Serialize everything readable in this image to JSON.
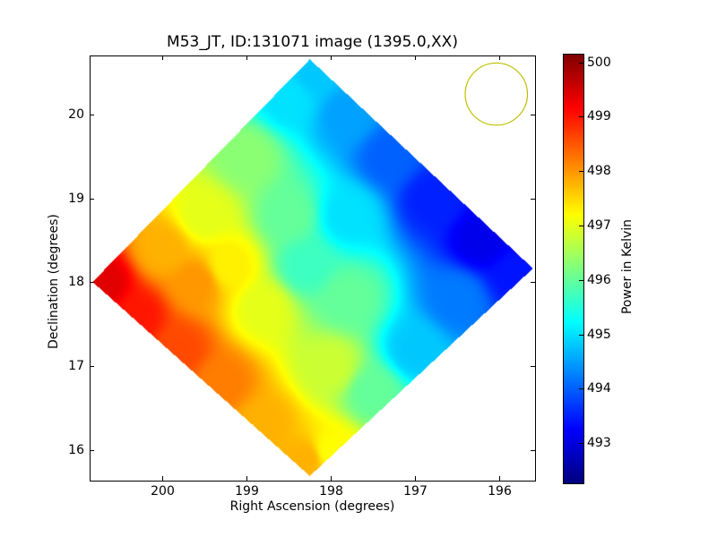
{
  "chart_data": {
    "type": "heatmap",
    "title": "M53_JT, ID:131071 image (1395.0,XX)",
    "xlabel": "Right Ascension (degrees)",
    "ylabel": "Declination (degrees)",
    "colorbar_label": "Power in Kelvin",
    "colormap": "jet",
    "xlim": [
      200.86,
      195.57
    ],
    "ylim": [
      15.64,
      20.7
    ],
    "clim": [
      492.26,
      500.16
    ],
    "xticks": [
      200,
      199,
      198,
      197,
      196
    ],
    "yticks": [
      16,
      17,
      18,
      19,
      20
    ],
    "cticks": [
      493,
      494,
      495,
      496,
      497,
      498,
      499,
      500
    ],
    "footprint_corners": [
      [
        200.83,
        18.01
      ],
      [
        198.25,
        20.66
      ],
      [
        195.6,
        18.17
      ],
      [
        198.25,
        15.7
      ]
    ],
    "beam_circle": {
      "ra": 196.03,
      "dec": 20.24,
      "radius_deg": 0.37,
      "color": "#bfbf00"
    },
    "samples": [
      [
        200.7,
        18.0,
        499.4
      ],
      [
        200.3,
        17.6,
        499.0
      ],
      [
        200.0,
        18.4,
        497.8
      ],
      [
        199.5,
        18.8,
        497.0
      ],
      [
        199.0,
        19.5,
        496.3
      ],
      [
        198.5,
        20.2,
        495.0
      ],
      [
        198.2,
        20.5,
        494.8
      ],
      [
        197.8,
        20.0,
        494.5
      ],
      [
        197.3,
        19.5,
        494.0
      ],
      [
        196.8,
        19.0,
        493.5
      ],
      [
        196.2,
        18.5,
        493.1
      ],
      [
        195.8,
        18.1,
        493.4
      ],
      [
        196.5,
        17.8,
        494.2
      ],
      [
        197.0,
        17.2,
        494.8
      ],
      [
        197.5,
        16.7,
        496.0
      ],
      [
        198.0,
        16.0,
        497.2
      ],
      [
        198.3,
        15.9,
        497.8
      ],
      [
        198.8,
        16.3,
        497.8
      ],
      [
        199.3,
        16.8,
        498.2
      ],
      [
        199.8,
        17.2,
        498.6
      ],
      [
        198.3,
        18.2,
        495.7
      ],
      [
        198.8,
        17.7,
        497.0
      ],
      [
        197.8,
        17.8,
        496.0
      ],
      [
        198.5,
        18.8,
        496.0
      ],
      [
        197.8,
        18.8,
        495.0
      ],
      [
        199.2,
        18.2,
        497.3
      ],
      [
        198.0,
        17.0,
        496.8
      ],
      [
        199.6,
        18.0,
        498.0
      ]
    ]
  }
}
